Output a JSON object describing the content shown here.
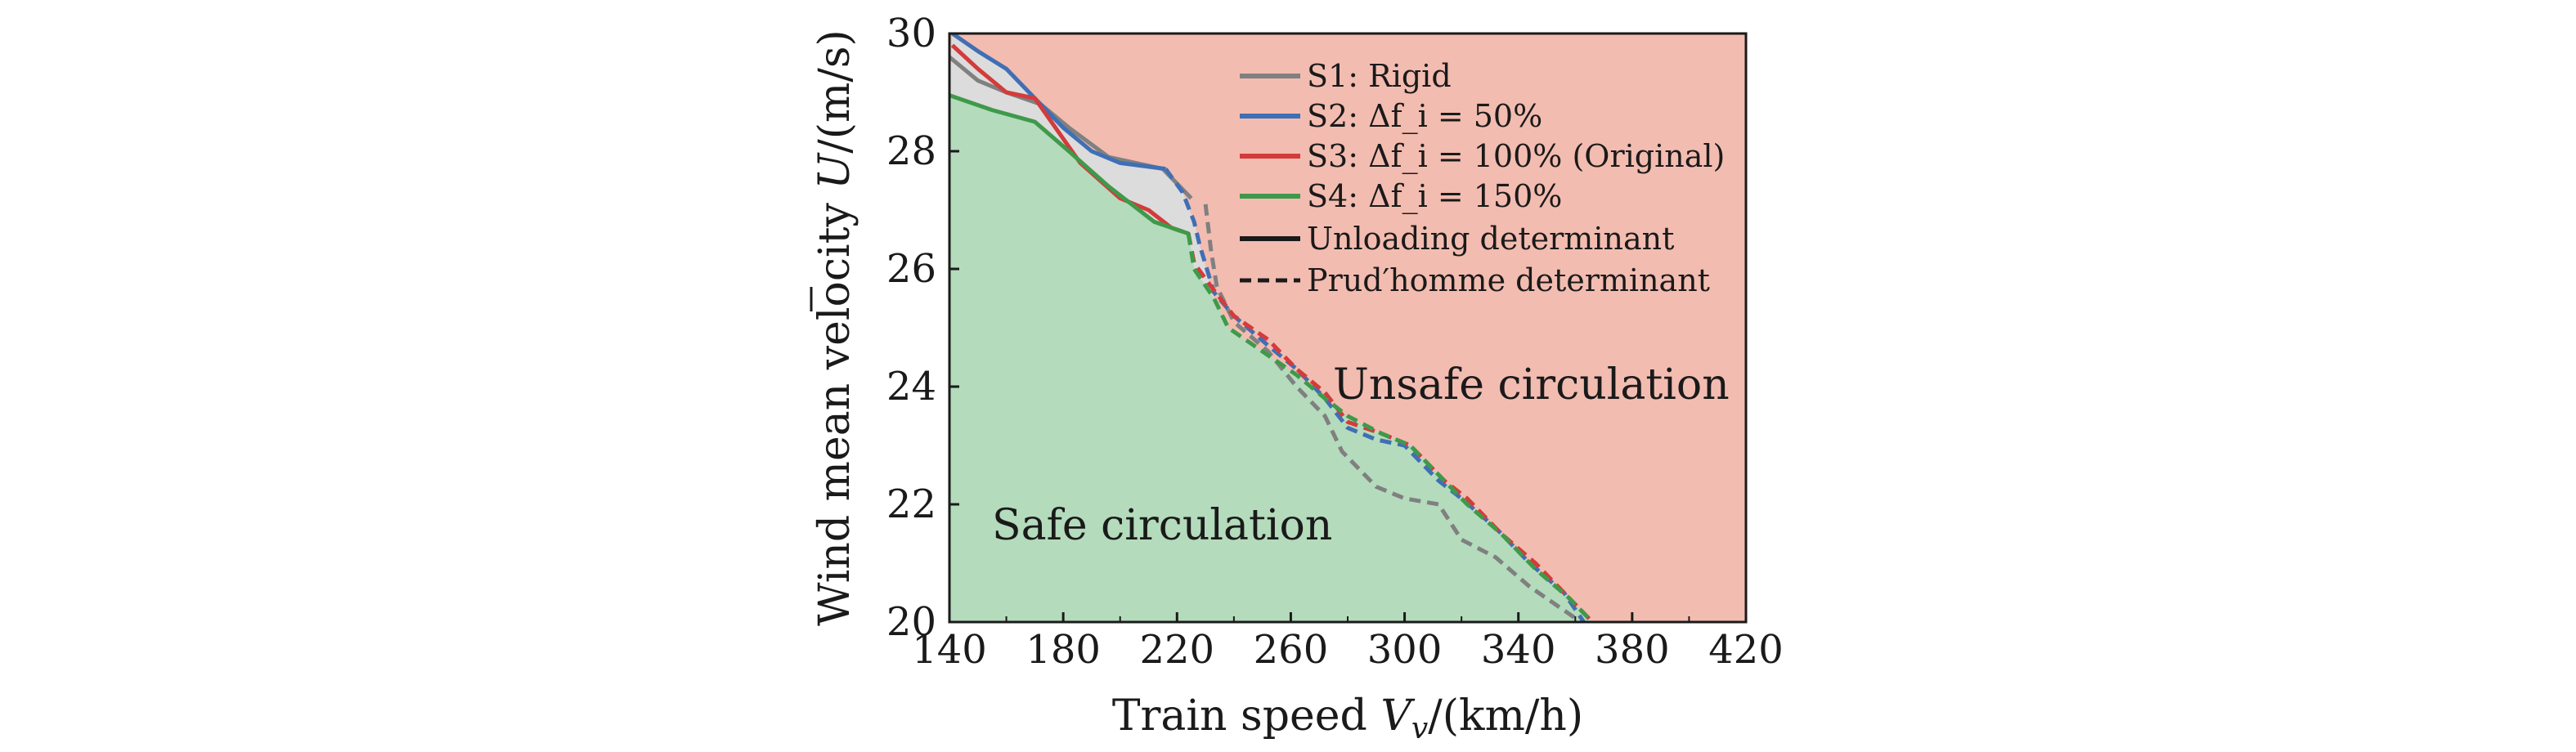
{
  "chart_data": {
    "type": "line",
    "xlabel": "Train speed V_v/(km/h)",
    "ylabel": "Wind mean velocity U̅/(m/s)",
    "xlim": [
      140,
      420
    ],
    "ylim": [
      20,
      30
    ],
    "xticks": [
      "140",
      "180",
      "220",
      "260",
      "300",
      "340",
      "380",
      "420"
    ],
    "yticks": [
      "20",
      "22",
      "24",
      "26",
      "28",
      "30"
    ],
    "grid": false,
    "legend_position": "top-right",
    "region_labels": {
      "safe": "Safe circulation",
      "unsafe": "Unsafe circulation"
    },
    "region_colors": {
      "safe": "#b4dbbc",
      "unsafe": "#f3bcb0",
      "band": "#dcdcdc"
    },
    "series": [
      {
        "name": "S1: Rigid",
        "color": "#808080",
        "unloading": {
          "x": [
            140,
            150,
            160,
            172,
            182,
            196,
            215,
            225
          ],
          "y": [
            29.6,
            29.2,
            29.0,
            28.8,
            28.4,
            27.9,
            27.7,
            27.2
          ]
        },
        "prudhomme": {
          "x": [
            230,
            232,
            234,
            240,
            252,
            262,
            272,
            278,
            290,
            300,
            312,
            320,
            332,
            344,
            356,
            362
          ],
          "y": [
            27.1,
            26.3,
            25.7,
            25.1,
            24.6,
            24.0,
            23.5,
            22.9,
            22.3,
            22.1,
            22.0,
            21.4,
            21.1,
            20.6,
            20.2,
            20.0
          ]
        }
      },
      {
        "name": "S2: Δf_i = 50%",
        "color": "#3f6fb5",
        "unloading": {
          "x": [
            141,
            150,
            160,
            170,
            180,
            190,
            200,
            216
          ],
          "y": [
            30.0,
            29.7,
            29.4,
            28.9,
            28.4,
            28.0,
            27.8,
            27.7
          ]
        },
        "prudhomme": {
          "x": [
            216,
            222,
            226,
            228,
            233,
            240,
            252,
            262,
            272,
            280,
            290,
            300,
            312,
            320,
            332,
            344,
            356,
            363
          ],
          "y": [
            27.7,
            27.3,
            26.8,
            26.4,
            25.6,
            25.2,
            24.7,
            24.3,
            23.8,
            23.3,
            23.1,
            23.0,
            22.4,
            22.1,
            21.6,
            21.0,
            20.5,
            20.0
          ]
        }
      },
      {
        "name": "S3: Δf_i = 100% (Original)",
        "color": "#d43b3b",
        "unloading": {
          "x": [
            141,
            150,
            160,
            170,
            186,
            200,
            210,
            218
          ],
          "y": [
            29.8,
            29.4,
            29.0,
            28.9,
            27.8,
            27.2,
            27.0,
            26.7
          ]
        },
        "prudhomme": {
          "x": [
            218,
            224,
            226,
            232,
            240,
            252,
            262,
            272,
            280,
            292,
            302,
            314,
            322,
            334,
            346,
            358,
            366
          ],
          "y": [
            26.7,
            26.6,
            26.1,
            25.7,
            25.2,
            24.8,
            24.3,
            23.9,
            23.4,
            23.2,
            23.0,
            22.4,
            22.1,
            21.5,
            21.0,
            20.4,
            20.0
          ]
        }
      },
      {
        "name": "S4: Δf_i = 150%",
        "color": "#3e9a4a",
        "unloading": {
          "x": [
            140,
            155,
            170,
            182,
            196,
            212,
            224
          ],
          "y": [
            28.95,
            28.7,
            28.5,
            28.0,
            27.4,
            26.8,
            26.6
          ]
        },
        "prudhomme": {
          "x": [
            224,
            226,
            233,
            238,
            250,
            262,
            272,
            280,
            292,
            302,
            312,
            322,
            334,
            346,
            358,
            366
          ],
          "y": [
            26.6,
            26.0,
            25.5,
            25.0,
            24.6,
            24.2,
            23.8,
            23.5,
            23.2,
            23.0,
            22.5,
            22.0,
            21.5,
            20.9,
            20.4,
            20.0
          ]
        }
      }
    ],
    "legend_styles": [
      {
        "label": "Unloading determinant",
        "dash": "solid"
      },
      {
        "label": "Prud′homme determinant",
        "dash": "dashed"
      }
    ]
  }
}
